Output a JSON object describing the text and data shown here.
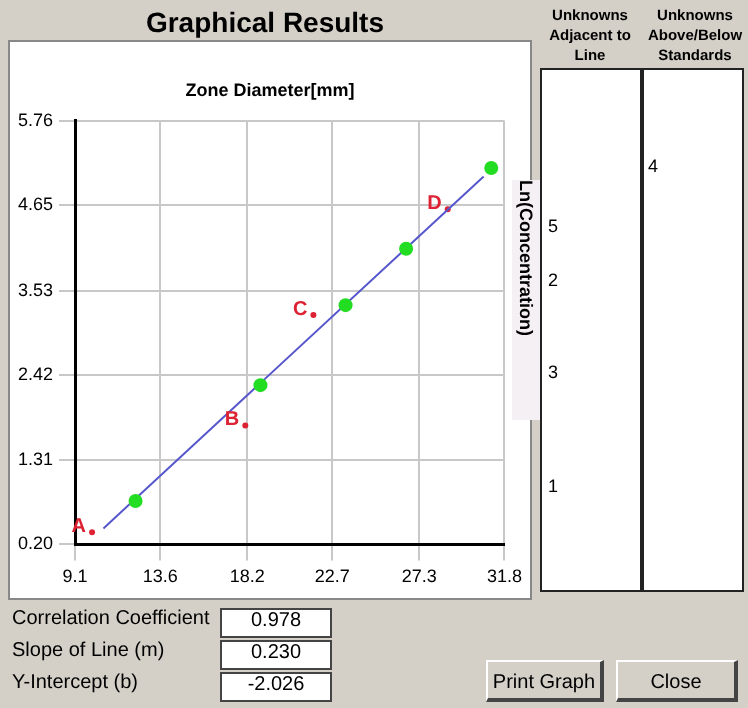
{
  "chart_data": {
    "type": "scatter",
    "title": "Graphical Results",
    "xlabel": "Zone Diameter[mm]",
    "ylabel": "Ln(Concentration)",
    "xlim": [
      9.1,
      31.8
    ],
    "xticks": [
      9.1,
      13.6,
      18.2,
      22.7,
      27.3,
      31.8
    ],
    "ylim": [
      0.2,
      5.76
    ],
    "yticks": [
      {
        "value": 0.2,
        "label": "0.20"
      },
      1.31,
      2.42,
      3.53,
      4.65,
      5.76
    ],
    "grid": true,
    "legend": false,
    "series": [
      {
        "type": "scatter",
        "color": "#22dd22",
        "marker": "circle",
        "x": [
          12.3,
          18.9,
          23.4,
          26.6,
          31.1
        ],
        "values": [
          0.77,
          2.29,
          3.34,
          4.08,
          5.14
        ]
      },
      {
        "type": "line",
        "color": "#5555cc",
        "marker": "none",
        "x": [
          10.6,
          30.7
        ],
        "values": [
          0.41,
          5.03
        ]
      },
      {
        "color": "#dd2233",
        "marker": "circle",
        "x": [
          10.0,
          18.1,
          21.7,
          28.8
        ],
        "values": [
          0.36,
          1.76,
          3.21,
          4.6
        ],
        "value_labels": [
          "A",
          "B",
          "C",
          "D"
        ]
      }
    ],
    "annotations": [
      "Unknowns Adjacent to Line",
      "Unknowns Above/Below Standards",
      "5",
      "2",
      "3",
      "1",
      "4",
      "Correlation Coefficient",
      "0.978",
      "Slope of Line (m)",
      "0.230",
      "Y-Intercept (b)",
      "-2.026",
      "Print Graph",
      "Close"
    ]
  }
}
